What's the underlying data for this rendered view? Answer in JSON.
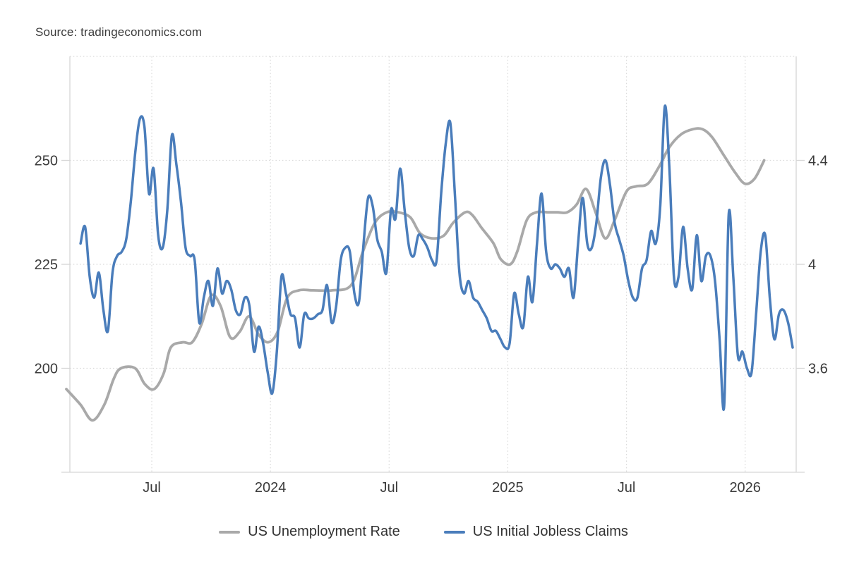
{
  "source_label": "Source: tradingeconomics.com",
  "chart_data": {
    "type": "line",
    "title": "",
    "grid": true,
    "legend_position": "bottom",
    "x_unit": "decimal year",
    "x_domain": [
      2023.155,
      2026.215
    ],
    "x_ticks": [
      {
        "value": 2023.5,
        "label": "Jul"
      },
      {
        "value": 2024.0,
        "label": "2024"
      },
      {
        "value": 2024.5,
        "label": "Jul"
      },
      {
        "value": 2025.0,
        "label": "2025"
      },
      {
        "value": 2025.5,
        "label": "Jul"
      },
      {
        "value": 2026.0,
        "label": "2026"
      }
    ],
    "y_left": {
      "unit": "thousand claims",
      "domain": [
        175,
        275
      ],
      "tick_values": [
        200,
        225,
        250
      ],
      "tick_labels": [
        "200",
        "225",
        "250"
      ],
      "gridline_values": [
        200,
        225,
        250,
        275
      ]
    },
    "y_right": {
      "unit": "percent",
      "domain": [
        3.2,
        4.8
      ],
      "tick_values": [
        3.6,
        4.0,
        4.4
      ],
      "tick_labels": [
        "3.6",
        "4",
        "4.4"
      ]
    },
    "colors": {
      "unemployment": "#a9a9a9",
      "claims": "#4a7dbb",
      "gridline": "#dadada",
      "axis": "#d6d6d6",
      "text": "#3b3b3b"
    },
    "series": [
      {
        "name": "US Unemployment Rate",
        "axis": "right",
        "color": "#a9a9a9",
        "points": [
          [
            2023.14,
            3.52
          ],
          [
            2023.2,
            3.46
          ],
          [
            2023.25,
            3.4
          ],
          [
            2023.3,
            3.46
          ],
          [
            2023.34,
            3.56
          ],
          [
            2023.37,
            3.6
          ],
          [
            2023.43,
            3.6
          ],
          [
            2023.47,
            3.54
          ],
          [
            2023.51,
            3.52
          ],
          [
            2023.55,
            3.58
          ],
          [
            2023.58,
            3.68
          ],
          [
            2023.63,
            3.7
          ],
          [
            2023.67,
            3.7
          ],
          [
            2023.71,
            3.77
          ],
          [
            2023.75,
            3.88
          ],
          [
            2023.79,
            3.84
          ],
          [
            2023.83,
            3.72
          ],
          [
            2023.87,
            3.74
          ],
          [
            2023.91,
            3.8
          ],
          [
            2023.95,
            3.73
          ],
          [
            2023.99,
            3.7
          ],
          [
            2024.03,
            3.74
          ],
          [
            2024.07,
            3.87
          ],
          [
            2024.12,
            3.9
          ],
          [
            2024.18,
            3.9
          ],
          [
            2024.26,
            3.9
          ],
          [
            2024.34,
            3.92
          ],
          [
            2024.39,
            4.05
          ],
          [
            2024.44,
            4.16
          ],
          [
            2024.49,
            4.2
          ],
          [
            2024.54,
            4.2
          ],
          [
            2024.59,
            4.18
          ],
          [
            2024.63,
            4.12
          ],
          [
            2024.68,
            4.1
          ],
          [
            2024.73,
            4.11
          ],
          [
            2024.77,
            4.16
          ],
          [
            2024.82,
            4.2
          ],
          [
            2024.85,
            4.19
          ],
          [
            2024.89,
            4.14
          ],
          [
            2024.94,
            4.08
          ],
          [
            2024.97,
            4.02
          ],
          [
            2025.01,
            4.0
          ],
          [
            2025.04,
            4.05
          ],
          [
            2025.08,
            4.17
          ],
          [
            2025.12,
            4.2
          ],
          [
            2025.17,
            4.2
          ],
          [
            2025.21,
            4.2
          ],
          [
            2025.25,
            4.2
          ],
          [
            2025.29,
            4.23
          ],
          [
            2025.33,
            4.29
          ],
          [
            2025.37,
            4.2
          ],
          [
            2025.41,
            4.1
          ],
          [
            2025.45,
            4.17
          ],
          [
            2025.5,
            4.28
          ],
          [
            2025.54,
            4.3
          ],
          [
            2025.59,
            4.31
          ],
          [
            2025.64,
            4.38
          ],
          [
            2025.68,
            4.45
          ],
          [
            2025.73,
            4.5
          ],
          [
            2025.78,
            4.52
          ],
          [
            2025.82,
            4.52
          ],
          [
            2025.86,
            4.49
          ],
          [
            2025.91,
            4.42
          ],
          [
            2025.96,
            4.35
          ],
          [
            2026.0,
            4.31
          ],
          [
            2026.04,
            4.33
          ],
          [
            2026.08,
            4.4
          ]
        ]
      },
      {
        "name": "US Initial Jobless Claims",
        "axis": "left",
        "color": "#4a7dbb",
        "x_start": 2023.2,
        "x_step_years": 0.019231,
        "values": [
          230,
          234,
          222,
          217,
          223,
          214,
          209,
          223,
          227,
          228,
          231,
          240,
          252,
          260,
          258,
          242,
          248,
          232,
          229,
          238,
          256,
          249,
          240,
          229,
          227,
          226,
          211,
          217,
          221,
          215,
          224,
          218,
          221,
          219,
          214,
          213,
          217,
          215,
          204,
          210,
          206,
          199,
          194,
          204,
          222,
          218,
          213,
          212,
          205,
          213,
          212,
          212,
          213,
          214,
          220,
          211,
          215,
          226,
          229,
          228,
          218,
          216,
          230,
          241,
          239,
          231,
          228,
          223,
          238,
          236,
          248,
          238,
          229,
          227,
          232,
          231,
          229,
          226,
          226,
          242,
          254,
          259,
          242,
          223,
          218,
          221,
          217,
          216,
          214,
          212,
          209,
          209,
          207,
          205,
          206,
          218,
          213,
          210,
          222,
          216,
          230,
          242,
          228,
          224,
          225,
          224,
          222,
          224,
          217,
          230,
          241,
          230,
          229,
          235,
          246,
          250,
          244,
          235,
          231,
          227,
          221,
          217,
          217,
          224,
          226,
          233,
          230,
          239,
          263,
          248,
          222,
          222,
          234,
          224,
          219,
          232,
          221,
          227,
          227,
          221,
          207,
          191,
          237,
          222,
          203,
          204,
          200,
          199,
          213,
          228,
          232,
          217,
          207,
          213,
          214,
          211,
          205
        ]
      }
    ]
  }
}
